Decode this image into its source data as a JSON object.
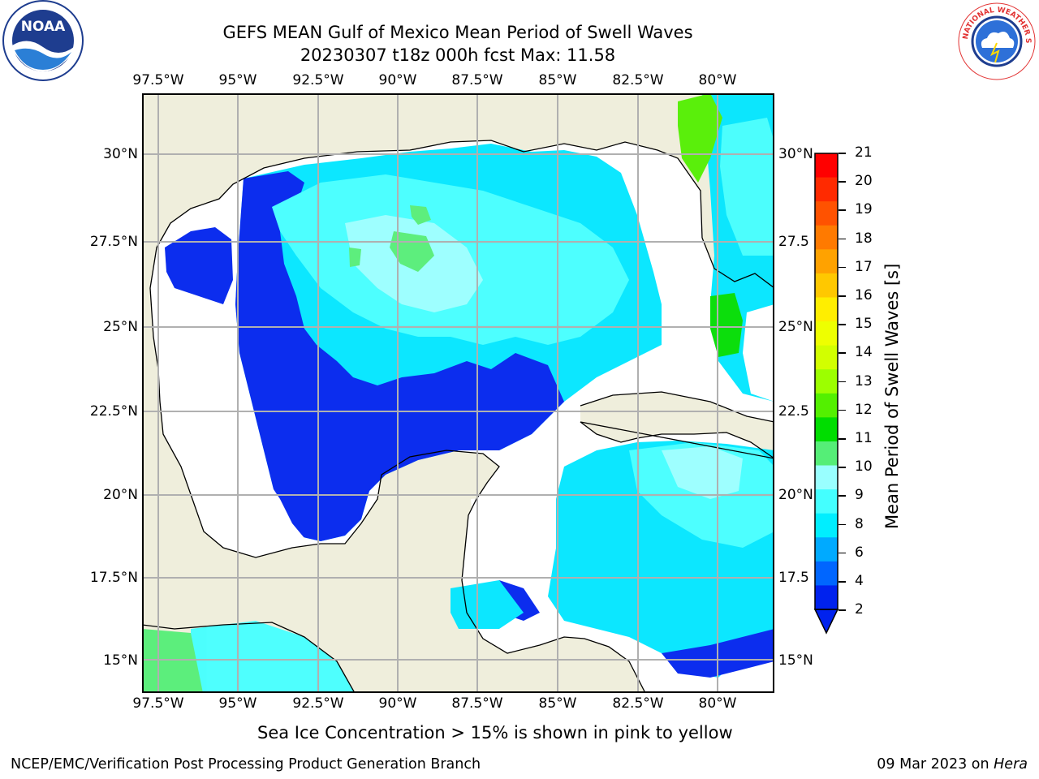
{
  "title": {
    "line1": "GEFS MEAN Gulf of Mexico Mean Period of Swell Waves",
    "line2": "20230307 t18z 000h fcst   Max: 11.58"
  },
  "map": {
    "lon_labels": [
      "97.5°W",
      "95°W",
      "92.5°W",
      "90°W",
      "87.5°W",
      "85°W",
      "82.5°W",
      "80°W"
    ],
    "lat_labels_left": [
      "30°N",
      "27.5°N",
      "25°N",
      "22.5°N",
      "20°N",
      "17.5°N",
      "15°N"
    ],
    "lat_labels_right": [
      "30°N",
      "27.5",
      "25°N",
      "22.5",
      "20°N",
      "17.5",
      "15°N"
    ],
    "land_color": "#efeedc",
    "ocean_missing_color": "#ffffff",
    "grid_color": "#b0b0b0"
  },
  "colorbar": {
    "title": "Mean Period of Swell Waves [s]",
    "levels": [
      "21",
      "20",
      "19",
      "18",
      "17",
      "16",
      "15",
      "14",
      "13",
      "12",
      "11",
      "10",
      "9",
      "8",
      "6",
      "4",
      "2"
    ],
    "colors": [
      "#ff0000",
      "#ff2a00",
      "#ff5200",
      "#ff7a00",
      "#ffa200",
      "#ffc800",
      "#ffee00",
      "#eeff00",
      "#d2ff00",
      "#9cff00",
      "#53f000",
      "#00dd00",
      "#55ee77",
      "#99ffff",
      "#44ffff",
      "#00eeff",
      "#00aaff",
      "#0066ff",
      "#0022ee"
    ]
  },
  "note": "Sea Ice Concentration > 15% is shown in pink to yellow",
  "footer": {
    "left": "NCEP/EMC/Verification Post Processing Product Generation Branch",
    "right_date": "09 Mar 2023 on ",
    "right_host": "Hera"
  },
  "logos": {
    "noaa_text": "NOAA",
    "nws_text": "NATIONAL WEATHER SERVICE"
  }
}
